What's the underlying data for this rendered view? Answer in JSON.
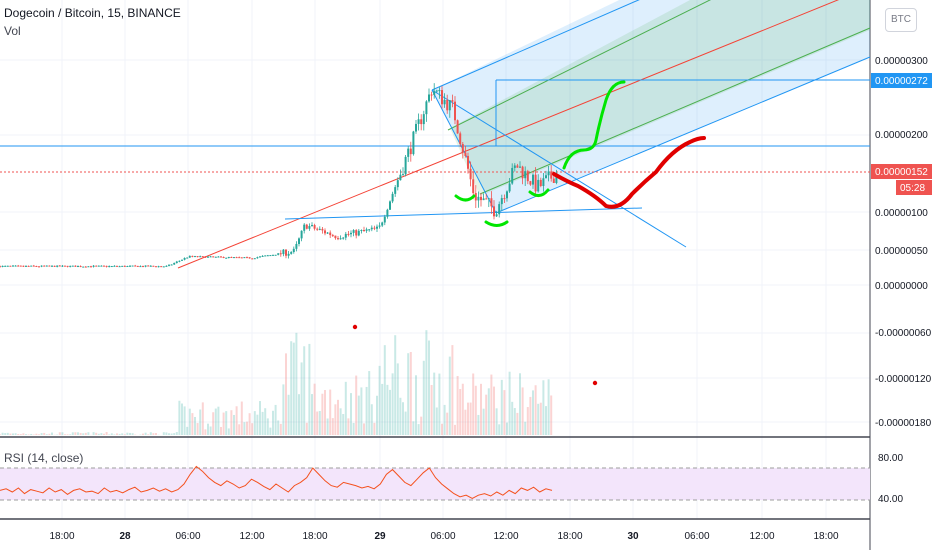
{
  "header": {
    "symbol": "Dogecoin / Bitcoin, 15, BINANCE",
    "volume_label": "Vol",
    "currency_button": "BTC"
  },
  "rsi_panel": {
    "label": "RSI (14, close)",
    "levels": [
      "80.00",
      "40.00"
    ]
  },
  "price_axis": {
    "ticks": [
      "0.00000300",
      "0.00000200",
      "0.00000100",
      "0.00000050",
      "0.00000000",
      "-0.00000060",
      "-0.00000120",
      "-0.00000180"
    ],
    "last_price_label": "0.00000152",
    "countdown_label": "05:28",
    "level_label": "0.00000272"
  },
  "time_axis": {
    "ticks": [
      "18:00",
      "28",
      "06:00",
      "12:00",
      "18:00",
      "29",
      "06:00",
      "12:00",
      "18:00",
      "30",
      "06:00",
      "12:00",
      "18:00"
    ]
  },
  "colors": {
    "up": "#26a69a",
    "down": "#ef5350",
    "pitchfork_blue": "#2196f3",
    "pitchfork_green": "#4caf50",
    "pitchfork_red": "#f44336",
    "drawn_green": "#00e600",
    "drawn_red": "#e00000",
    "rsi_line": "#f4511e",
    "rsi_band": "#f3e5fb"
  },
  "chart_data": {
    "type": "candlestick",
    "title": "Dogecoin / Bitcoin, 15, BINANCE",
    "unit": "BTC",
    "y_range": [
      -2.1e-06,
      4e-06
    ],
    "last_price": 1.52e-06,
    "horizontal_levels": [
      2.72e-06,
      1.85e-06
    ],
    "price_path": [
      {
        "t": "27 12:00",
        "p": 2.5e-07
      },
      {
        "t": "28 04:00",
        "p": 2.5e-07
      },
      {
        "t": "28 06:00",
        "p": 3.8e-07
      },
      {
        "t": "28 12:00",
        "p": 3.6e-07
      },
      {
        "t": "28 16:00",
        "p": 4.5e-07
      },
      {
        "t": "28 17:00",
        "p": 8e-07
      },
      {
        "t": "28 20:00",
        "p": 6.5e-07
      },
      {
        "t": "29 00:00",
        "p": 7.5e-07
      },
      {
        "t": "29 03:00",
        "p": 1.85e-06
      },
      {
        "t": "29 05:00",
        "p": 2.62e-06
      },
      {
        "t": "29 07:00",
        "p": 2.35e-06
      },
      {
        "t": "29 09:00",
        "p": 1.2e-06
      },
      {
        "t": "29 11:00",
        "p": 1e-06
      },
      {
        "t": "29 13:00",
        "p": 1.6e-06
      },
      {
        "t": "29 15:00",
        "p": 1.3e-06
      },
      {
        "t": "29 17:00",
        "p": 1.52e-06
      }
    ],
    "rsi": {
      "period": 14,
      "levels": [
        80,
        40
      ],
      "values": [
        52,
        54,
        50,
        55,
        48,
        53,
        51,
        49,
        55,
        50,
        53,
        47,
        52,
        54,
        50,
        51,
        48,
        55,
        50,
        52,
        49,
        53,
        56,
        50,
        52,
        55,
        51,
        54,
        50,
        53,
        60,
        72,
        82,
        76,
        68,
        62,
        58,
        64,
        60,
        55,
        58,
        66,
        62,
        57,
        53,
        60,
        55,
        50,
        58,
        62,
        68,
        80,
        72,
        64,
        58,
        56,
        62,
        60,
        58,
        55,
        57,
        54,
        60,
        72,
        78,
        70,
        62,
        58,
        66,
        74,
        80,
        68,
        60,
        54,
        48,
        44,
        46,
        42,
        46,
        48,
        45,
        50,
        46,
        52,
        48,
        55,
        52,
        56,
        50,
        54,
        52
      ]
    }
  }
}
